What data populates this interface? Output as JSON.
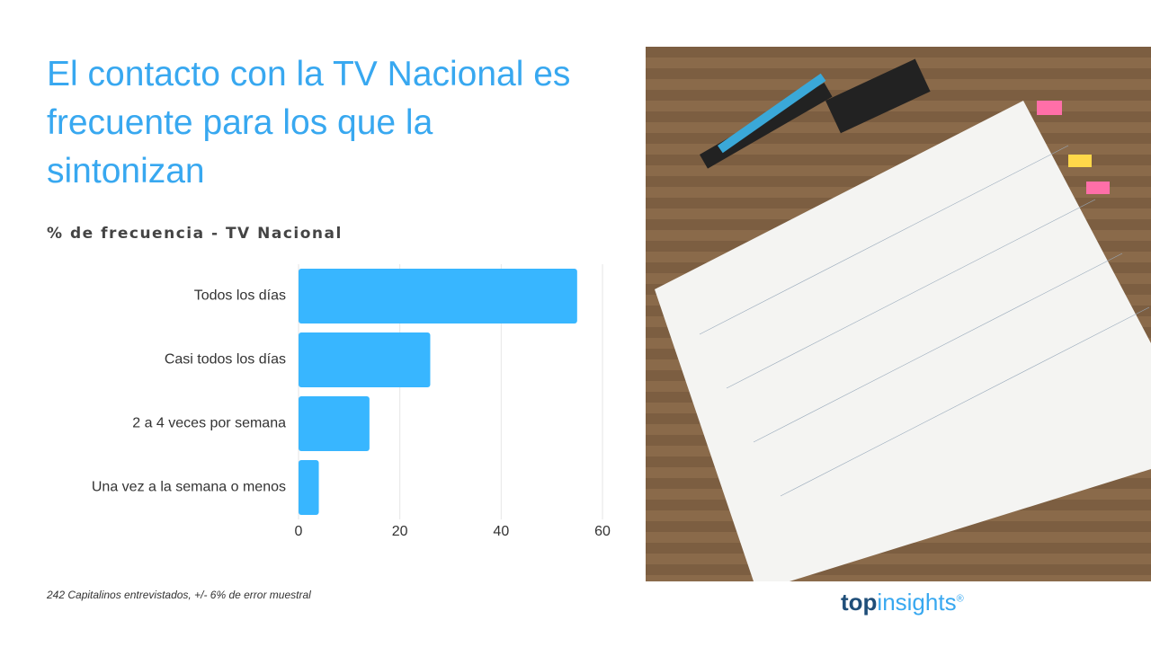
{
  "title": "El contacto con la TV Nacional es frecuente para los que la sintonizan",
  "chart_data": {
    "type": "bar",
    "orientation": "horizontal",
    "title": "% de frecuencia - TV Nacional",
    "categories": [
      "Todos los días",
      "Casi todos los días",
      "2 a 4 veces por semana",
      "Una vez a la semana o menos"
    ],
    "values": [
      55,
      26,
      14,
      4
    ],
    "color": "#38b6ff",
    "xlim": [
      0,
      60
    ],
    "xticks": [
      0,
      20,
      40,
      60
    ],
    "grid": true
  },
  "footnote": "242 Capitalinos entrevistados, +/- 6% de error muestral",
  "logo": {
    "parts": [
      "top",
      "insights",
      "®"
    ]
  }
}
